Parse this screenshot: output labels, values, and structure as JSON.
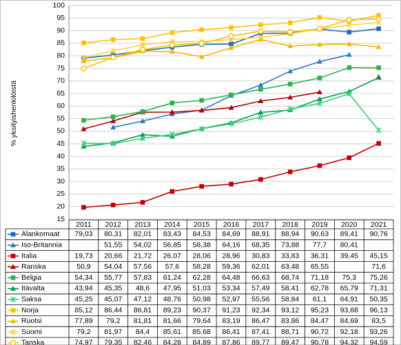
{
  "chart_data": {
    "type": "line",
    "y_label": "% yksityishenkilöistä",
    "categories": [
      "2011",
      "2012",
      "2013",
      "2014",
      "2015",
      "2016",
      "2017",
      "2018",
      "2019",
      "2020",
      "2021"
    ],
    "ylim": [
      15,
      100
    ],
    "yticks": [
      15,
      20,
      25,
      30,
      35,
      40,
      45,
      50,
      55,
      60,
      65,
      70,
      75,
      80,
      85,
      90,
      95,
      100
    ],
    "grid": true,
    "series": [
      {
        "name": "Alankomaat",
        "color": "#1f6db5",
        "marker": "square",
        "values": [
          79.03,
          80.31,
          82.01,
          83.43,
          84.53,
          84.69,
          88.91,
          88.94,
          90.63,
          89.41,
          90.76
        ],
        "value_labels": [
          "79,03",
          "80,31",
          "82,01",
          "83,43",
          "84,53",
          "84,69",
          "88,91",
          "88,94",
          "90,63",
          "89,41",
          "90,76"
        ]
      },
      {
        "name": "Iso-Britannia",
        "color": "#2e75c6",
        "marker": "triangle",
        "values": [
          null,
          51.55,
          54.02,
          56.85,
          58.38,
          64.16,
          68.35,
          73.88,
          77.7,
          80.41,
          null
        ],
        "value_labels": [
          null,
          "51,55",
          "54,02",
          "56,85",
          "58,38",
          "64,16",
          "68,35",
          "73,88",
          "77,7",
          "80,41",
          null
        ]
      },
      {
        "name": "Italia",
        "color": "#c00000",
        "marker": "square",
        "values": [
          19.73,
          20.66,
          21.72,
          26.07,
          28.06,
          28.96,
          30.83,
          33.83,
          36.31,
          39.45,
          45.15
        ],
        "value_labels": [
          "19,73",
          "20,66",
          "21,72",
          "26,07",
          "28,06",
          "28,96",
          "30,83",
          "33,83",
          "36,31",
          "39,45",
          "45,15"
        ]
      },
      {
        "name": "Ranska",
        "color": "#b00000",
        "marker": "triangle",
        "values": [
          50.9,
          54.04,
          57.56,
          57.6,
          58.28,
          59.36,
          62.01,
          63.48,
          65.55,
          null,
          71.6
        ],
        "value_labels": [
          "50,9",
          "54,04",
          "57,56",
          "57,6",
          "58,28",
          "59,36",
          "62,01",
          "63,48",
          "65,55",
          null,
          "71,6"
        ]
      },
      {
        "name": "Belgia",
        "color": "#2eb04c",
        "marker": "square",
        "values": [
          54.34,
          55.77,
          57.83,
          61.24,
          62.28,
          64.48,
          66.63,
          68.74,
          71.18,
          75.3,
          75.26
        ],
        "value_labels": [
          "54,34",
          "55,77",
          "57,83",
          "61,24",
          "62,28",
          "64,48",
          "66,63",
          "68,74",
          "71,18",
          "75,3",
          "75,26"
        ]
      },
      {
        "name": "Itävalta",
        "color": "#00a050",
        "marker": "triangle",
        "values": [
          43.94,
          45.35,
          48.6,
          47.95,
          51.03,
          53.34,
          57.49,
          58.41,
          62.78,
          65.79,
          71.31
        ],
        "value_labels": [
          "43,94",
          "45,35",
          "48,6",
          "47,95",
          "51,03",
          "53,34",
          "57,49",
          "58,41",
          "62,78",
          "65,79",
          "71,31"
        ]
      },
      {
        "name": "Saksa",
        "color": "#40cc70",
        "marker": "star",
        "values": [
          45.25,
          45.07,
          47.12,
          48.76,
          50.98,
          52.97,
          55.56,
          58.84,
          61.1,
          64.91,
          50.35
        ],
        "value_labels": [
          "45,25",
          "45,07",
          "47,12",
          "48,76",
          "50,98",
          "52,97",
          "55,56",
          "58,84",
          "61,1",
          "64,91",
          "50,35"
        ]
      },
      {
        "name": "Norja",
        "color": "#ffc000",
        "marker": "square",
        "values": [
          85.12,
          86.44,
          86.81,
          89.23,
          90.37,
          91.23,
          92.34,
          93.12,
          95.23,
          93.68,
          96.13
        ],
        "value_labels": [
          "85,12",
          "86,44",
          "86,81",
          "89,23",
          "90,37",
          "91,23",
          "92,34",
          "93,12",
          "95,23",
          "93,68",
          "96,13"
        ]
      },
      {
        "name": "Ruotsi",
        "color": "#f5b800",
        "marker": "triangle",
        "values": [
          77.89,
          79.2,
          81.81,
          81.66,
          79.64,
          83.19,
          86.47,
          83.86,
          84.47,
          84.69,
          83.5
        ],
        "value_labels": [
          "77,89",
          "79,2",
          "81,81",
          "81,66",
          "79,64",
          "83,19",
          "86,47",
          "83,86",
          "84,47",
          "84,69",
          "83,5"
        ]
      },
      {
        "name": "Suomi",
        "color": "#ffd040",
        "marker": "star",
        "values": [
          79.2,
          81.97,
          84.4,
          85.61,
          85.68,
          86.41,
          87.41,
          88.71,
          90.72,
          92.18,
          93.26
        ],
        "value_labels": [
          "79,2",
          "81,97",
          "84,4",
          "85,61",
          "85,68",
          "86,41",
          "87,41",
          "88,71",
          "90,72",
          "92,18",
          "93,26"
        ]
      },
      {
        "name": "Tanska",
        "color": "#ffc000",
        "marker": "circle",
        "values": [
          74.97,
          79.35,
          82.46,
          84.28,
          84.89,
          87.86,
          89.77,
          89.47,
          90.78,
          94.32,
          94.59
        ],
        "value_labels": [
          "74,97",
          "79,35",
          "82,46",
          "84,28",
          "84,89",
          "87,86",
          "89,77",
          "89,47",
          "90,78",
          "94,32",
          "94,59"
        ]
      }
    ]
  }
}
